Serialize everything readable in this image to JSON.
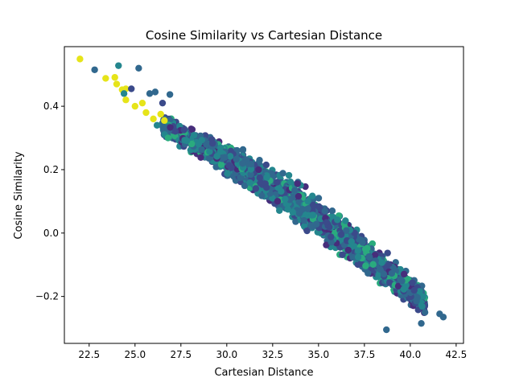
{
  "chart_data": {
    "type": "scatter",
    "title": "Cosine Similarity vs Cartesian Distance",
    "xlabel": "Cartesian Distance",
    "ylabel": "Cosine Similarity",
    "xlim": [
      21.15,
      42.9
    ],
    "ylim": [
      -0.348,
      0.588
    ],
    "xticks": [
      22.5,
      25.0,
      27.5,
      30.0,
      32.5,
      35.0,
      37.5,
      40.0,
      42.5
    ],
    "xtick_labels": [
      "22.5",
      "25.0",
      "27.5",
      "30.0",
      "32.5",
      "35.0",
      "37.5",
      "40.0",
      "42.5"
    ],
    "yticks": [
      -0.2,
      0.0,
      0.2,
      0.4
    ],
    "ytick_labels": [
      "−0.2",
      "0.0",
      "0.2",
      "0.4"
    ],
    "grid": false,
    "colormap": "viridis",
    "colors": {
      "yellow": "#e6e419",
      "green": "#2aab7e",
      "teal": "#24868e",
      "blue": "#31688e",
      "indigo": "#3b4a8a",
      "purple": "#472d7b"
    },
    "outlier_points": [
      {
        "x": 22.0,
        "y": 0.549,
        "c": "yellow"
      },
      {
        "x": 22.8,
        "y": 0.515,
        "c": "blue"
      },
      {
        "x": 24.1,
        "y": 0.528,
        "c": "teal"
      },
      {
        "x": 25.2,
        "y": 0.52,
        "c": "blue"
      },
      {
        "x": 23.4,
        "y": 0.488,
        "c": "yellow"
      },
      {
        "x": 23.9,
        "y": 0.491,
        "c": "yellow"
      },
      {
        "x": 24.0,
        "y": 0.47,
        "c": "yellow"
      },
      {
        "x": 24.3,
        "y": 0.452,
        "c": "yellow"
      },
      {
        "x": 24.5,
        "y": 0.455,
        "c": "yellow"
      },
      {
        "x": 24.8,
        "y": 0.455,
        "c": "indigo"
      },
      {
        "x": 24.4,
        "y": 0.44,
        "c": "teal"
      },
      {
        "x": 24.5,
        "y": 0.42,
        "c": "yellow"
      },
      {
        "x": 25.0,
        "y": 0.4,
        "c": "yellow"
      },
      {
        "x": 25.4,
        "y": 0.41,
        "c": "yellow"
      },
      {
        "x": 25.6,
        "y": 0.38,
        "c": "yellow"
      },
      {
        "x": 25.8,
        "y": 0.44,
        "c": "blue"
      },
      {
        "x": 26.1,
        "y": 0.445,
        "c": "blue"
      },
      {
        "x": 26.0,
        "y": 0.36,
        "c": "yellow"
      },
      {
        "x": 26.4,
        "y": 0.375,
        "c": "yellow"
      },
      {
        "x": 26.2,
        "y": 0.34,
        "c": "teal"
      },
      {
        "x": 26.9,
        "y": 0.437,
        "c": "blue"
      },
      {
        "x": 26.6,
        "y": 0.355,
        "c": "yellow"
      },
      {
        "x": 26.8,
        "y": 0.3,
        "c": "green"
      },
      {
        "x": 26.5,
        "y": 0.41,
        "c": "indigo"
      },
      {
        "x": 41.6,
        "y": -0.255,
        "c": "blue"
      },
      {
        "x": 41.8,
        "y": -0.265,
        "c": "blue"
      },
      {
        "x": 40.6,
        "y": -0.285,
        "c": "blue"
      },
      {
        "x": 40.8,
        "y": -0.25,
        "c": "blue"
      },
      {
        "x": 38.7,
        "y": -0.305,
        "c": "blue"
      }
    ],
    "band": {
      "x_start": 26.5,
      "x_end": 40.8,
      "y_center_start": 0.34,
      "y_center_end": -0.22,
      "half_width_start": 0.04,
      "half_width_mid": 0.085,
      "half_width_end": 0.055,
      "point_count": 1900,
      "color_mix": [
        "blue",
        "blue",
        "indigo",
        "teal",
        "teal",
        "indigo",
        "purple",
        "green",
        "blue",
        "teal"
      ]
    }
  }
}
